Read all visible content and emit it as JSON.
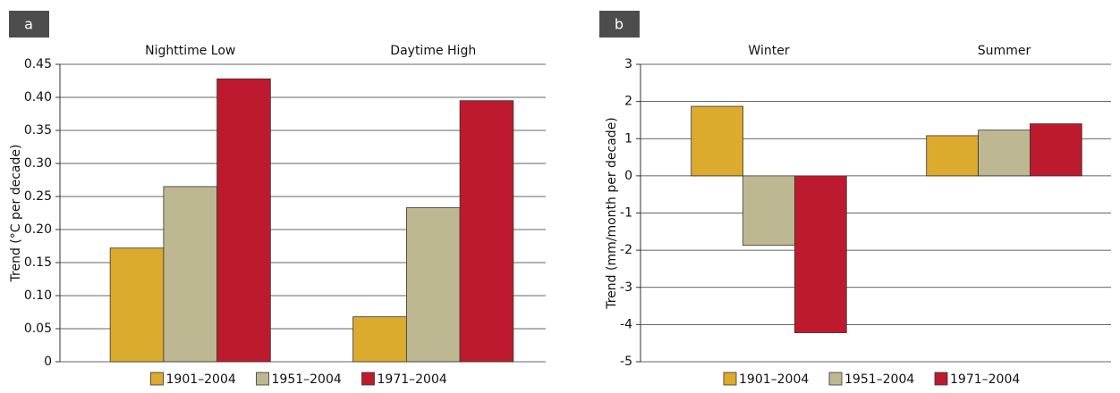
{
  "chart_data": [
    {
      "type": "bar",
      "panel": "a",
      "ylabel": "Trend (°C per decade)",
      "categories": [
        "Nighttime Low",
        "Daytime High"
      ],
      "series": [
        {
          "name": "1901–2004",
          "color": "#dcab2e",
          "values": [
            0.172,
            0.068
          ]
        },
        {
          "name": "1951–2004",
          "color": "#bdb891",
          "values": [
            0.265,
            0.233
          ]
        },
        {
          "name": "1971–2004",
          "color": "#be1a2e",
          "values": [
            0.428,
            0.395
          ]
        }
      ],
      "ylim": [
        0,
        0.45
      ],
      "yticks": [
        0,
        0.05,
        {
          "value": 0.1,
          "label": "0.10"
        },
        0.15,
        {
          "value": 0.2,
          "label": "0.20"
        },
        0.25,
        {
          "value": 0.3,
          "label": "0.30"
        },
        0.35,
        {
          "value": 0.4,
          "label": "0.40"
        },
        0.45
      ],
      "grid": true
    },
    {
      "type": "bar",
      "panel": "b",
      "ylabel": "Trend (mm/month per decade)",
      "categories": [
        "Winter",
        "Summer"
      ],
      "series": [
        {
          "name": "1901–2004",
          "color": "#dcab2e",
          "values": [
            1.87,
            1.08
          ]
        },
        {
          "name": "1951–2004",
          "color": "#bdb891",
          "values": [
            -1.87,
            1.23
          ]
        },
        {
          "name": "1971–2004",
          "color": "#be1a2e",
          "values": [
            -4.22,
            1.4
          ]
        }
      ],
      "ylim": [
        -5,
        3
      ],
      "yticks": [
        -5,
        -4,
        -3,
        -2,
        -1,
        0,
        1,
        2,
        3
      ],
      "grid": true
    }
  ]
}
